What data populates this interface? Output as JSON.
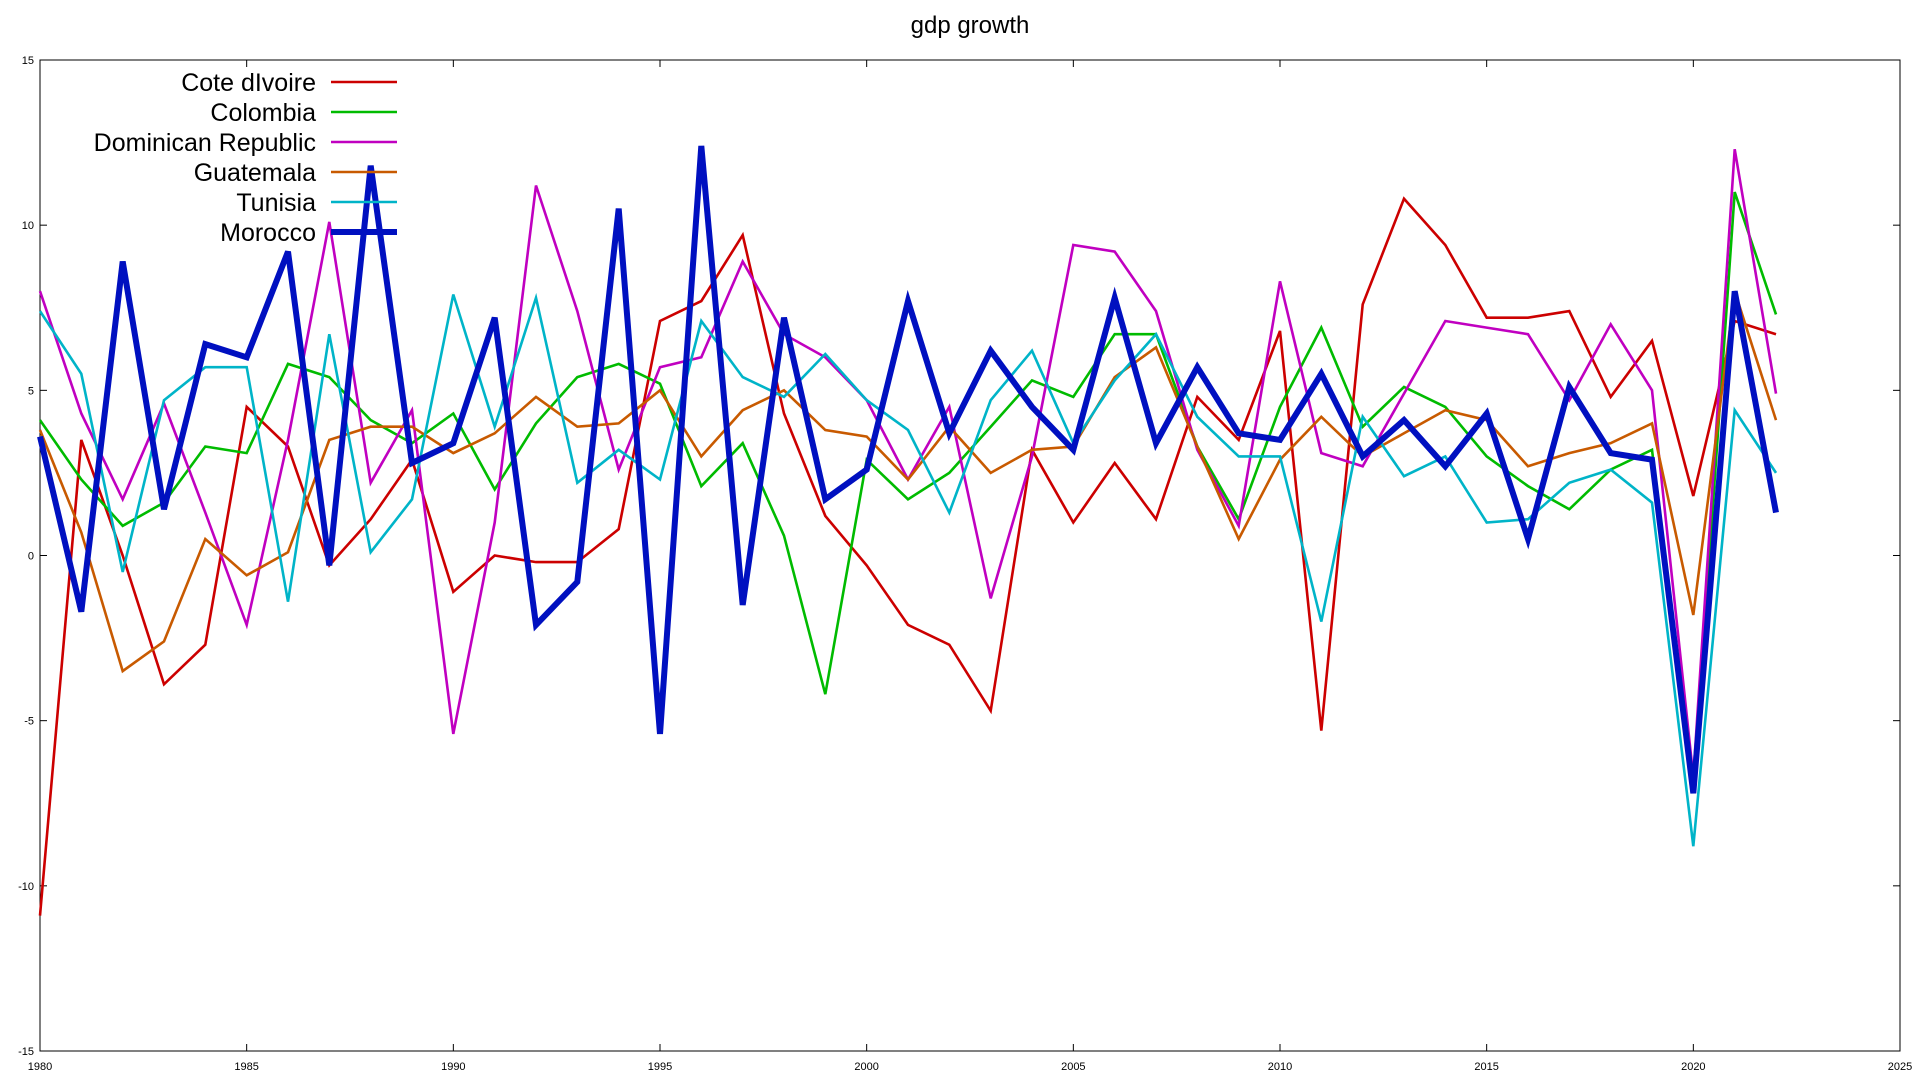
{
  "chart_data": {
    "type": "line",
    "title": "gdp growth",
    "xlabel": "",
    "ylabel": "",
    "xlim": [
      1980,
      2025
    ],
    "ylim": [
      -15,
      15
    ],
    "xticks": [
      "1980",
      "1985",
      "1990",
      "1995",
      "2000",
      "2005",
      "2010",
      "2015",
      "2020",
      "2025"
    ],
    "yticks": [
      "-15",
      "-10",
      "-5",
      "0",
      "5",
      "10",
      "15"
    ],
    "grid": false,
    "legend_position": "top-left",
    "x": [
      1980,
      1981,
      1982,
      1983,
      1984,
      1985,
      1986,
      1987,
      1988,
      1989,
      1990,
      1991,
      1992,
      1993,
      1994,
      1995,
      1996,
      1997,
      1998,
      1999,
      2000,
      2001,
      2002,
      2003,
      2004,
      2005,
      2006,
      2007,
      2008,
      2009,
      2010,
      2011,
      2012,
      2013,
      2014,
      2015,
      2016,
      2017,
      2018,
      2019,
      2020,
      2021,
      2022
    ],
    "series": [
      {
        "name": "Cote dIvoire",
        "color": "#cc0000",
        "values": [
          -10.9,
          3.5,
          0.0,
          -3.9,
          -2.7,
          4.5,
          3.3,
          -0.3,
          1.1,
          2.9,
          -1.1,
          0.0,
          -0.2,
          -0.2,
          0.8,
          7.1,
          7.7,
          9.7,
          4.3,
          1.2,
          -0.3,
          -2.1,
          -2.7,
          -4.7,
          3.2,
          1.0,
          2.8,
          1.1,
          4.8,
          3.5,
          6.8,
          -5.3,
          7.6,
          10.8,
          9.4,
          7.2,
          7.2,
          7.4,
          4.8,
          6.5,
          1.8,
          7.1,
          6.7
        ]
      },
      {
        "name": "Colombia",
        "color": "#00bb00",
        "values": [
          4.1,
          2.3,
          0.9,
          1.6,
          3.3,
          3.1,
          5.8,
          5.4,
          4.1,
          3.4,
          4.3,
          2.0,
          4.0,
          5.4,
          5.8,
          5.2,
          2.1,
          3.4,
          0.6,
          -4.2,
          2.9,
          1.7,
          2.5,
          3.9,
          5.3,
          4.8,
          6.7,
          6.7,
          3.3,
          1.1,
          4.5,
          6.9,
          3.9,
          5.1,
          4.5,
          3.0,
          2.1,
          1.4,
          2.6,
          3.2,
          -7.0,
          11.0,
          7.3
        ]
      },
      {
        "name": "Dominican Republic",
        "color": "#c000c0",
        "values": [
          8.0,
          4.3,
          1.7,
          4.6,
          1.3,
          -2.1,
          3.5,
          10.1,
          2.2,
          4.4,
          -5.4,
          1.0,
          11.2,
          7.4,
          2.6,
          5.7,
          6.0,
          8.9,
          6.7,
          6.0,
          4.7,
          2.3,
          4.5,
          -1.3,
          3.0,
          9.4,
          9.2,
          7.4,
          3.2,
          0.9,
          8.3,
          3.1,
          2.7,
          4.9,
          7.1,
          6.9,
          6.7,
          4.7,
          7.0,
          5.0,
          -6.7,
          12.3,
          4.9
        ]
      },
      {
        "name": "Guatemala",
        "color": "#c85a00",
        "values": [
          3.8,
          0.7,
          -3.5,
          -2.6,
          0.5,
          -0.6,
          0.1,
          3.5,
          3.9,
          3.9,
          3.1,
          3.7,
          4.8,
          3.9,
          4.0,
          5.0,
          3.0,
          4.4,
          5.0,
          3.8,
          3.6,
          2.3,
          3.9,
          2.5,
          3.2,
          3.3,
          5.4,
          6.3,
          3.3,
          0.5,
          2.9,
          4.2,
          3.0,
          3.7,
          4.4,
          4.1,
          2.7,
          3.1,
          3.4,
          4.0,
          -1.8,
          8.0,
          4.1
        ]
      },
      {
        "name": "Tunisia",
        "color": "#00b4c8",
        "values": [
          7.4,
          5.5,
          -0.5,
          4.7,
          5.7,
          5.7,
          -1.4,
          6.7,
          0.1,
          1.7,
          7.9,
          3.9,
          7.8,
          2.2,
          3.2,
          2.3,
          7.1,
          5.4,
          4.8,
          6.1,
          4.7,
          3.8,
          1.3,
          4.7,
          6.2,
          3.4,
          5.3,
          6.7,
          4.2,
          3.0,
          3.0,
          -2.0,
          4.2,
          2.4,
          3.0,
          1.0,
          1.1,
          2.2,
          2.6,
          1.6,
          -8.8,
          4.4,
          2.5
        ]
      },
      {
        "name": "Morocco",
        "color": "#0010c0",
        "thick": true,
        "values": [
          3.6,
          -1.7,
          8.9,
          1.4,
          6.4,
          6.0,
          9.2,
          -0.3,
          11.8,
          2.8,
          3.4,
          7.2,
          -2.1,
          -0.8,
          10.5,
          -5.4,
          12.4,
          -1.5,
          7.2,
          1.7,
          2.6,
          7.7,
          3.7,
          6.2,
          4.5,
          3.2,
          7.8,
          3.4,
          5.7,
          3.7,
          3.5,
          5.5,
          3.0,
          4.1,
          2.7,
          4.3,
          0.5,
          5.1,
          3.1,
          2.9,
          -7.2,
          8.0,
          1.3
        ]
      }
    ]
  }
}
